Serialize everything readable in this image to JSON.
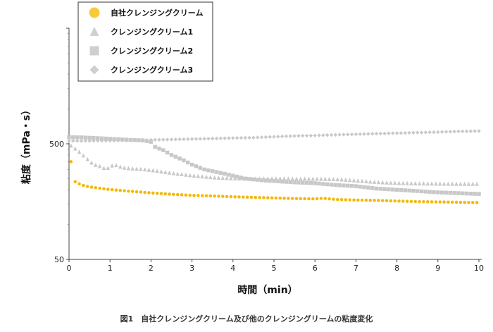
{
  "chart_data": {
    "type": "scatter",
    "caption": "図1　自社クレンジングクリーム及び他のクレンジングリームの粘度変化",
    "xlabel": "時間（min）",
    "ylabel": "粘度（mPa・s）",
    "xlim": [
      0,
      10
    ],
    "ylim": [
      50,
      5000
    ],
    "y_scale": "log",
    "x_ticks": [
      "0",
      "1",
      "2",
      "3",
      "4",
      "5",
      "6",
      "7",
      "8",
      "9",
      "10"
    ],
    "y_ticks": [
      "50",
      "500"
    ],
    "grid": false,
    "legend_position": "top-left",
    "series": [
      {
        "name": "自社クレンジングクリーム",
        "color": "#f5b800",
        "marker": "circle",
        "points": [
          [
            0.05,
            350
          ],
          [
            0.15,
            235
          ],
          [
            0.3,
            220
          ],
          [
            0.5,
            212
          ],
          [
            0.8,
            205
          ],
          [
            1.0,
            201
          ],
          [
            1.3,
            197
          ],
          [
            1.6,
            193
          ],
          [
            2.0,
            188
          ],
          [
            2.5,
            183
          ],
          [
            3.0,
            179
          ],
          [
            3.5,
            177
          ],
          [
            4.0,
            174
          ],
          [
            4.5,
            172
          ],
          [
            5.0,
            170
          ],
          [
            5.5,
            168
          ],
          [
            6.0,
            167
          ],
          [
            6.2,
            169
          ],
          [
            6.5,
            165
          ],
          [
            7.0,
            163
          ],
          [
            7.5,
            162
          ],
          [
            8.0,
            160
          ],
          [
            8.5,
            158
          ],
          [
            9.0,
            157
          ],
          [
            9.5,
            156
          ],
          [
            10.0,
            155
          ]
        ]
      },
      {
        "name": "クレンジングクリーム1",
        "color": "#c8c8c8",
        "marker": "triangle",
        "points": [
          [
            0.05,
            480
          ],
          [
            0.2,
            440
          ],
          [
            0.4,
            380
          ],
          [
            0.6,
            330
          ],
          [
            0.8,
            315
          ],
          [
            0.9,
            300
          ],
          [
            1.1,
            330
          ],
          [
            1.3,
            310
          ],
          [
            1.5,
            305
          ],
          [
            1.8,
            300
          ],
          [
            2.0,
            295
          ],
          [
            2.3,
            285
          ],
          [
            2.6,
            275
          ],
          [
            3.0,
            265
          ],
          [
            3.5,
            255
          ],
          [
            4.0,
            250
          ],
          [
            4.5,
            248
          ],
          [
            5.0,
            250
          ],
          [
            5.5,
            248
          ],
          [
            6.0,
            248
          ],
          [
            6.5,
            246
          ],
          [
            7.0,
            240
          ],
          [
            7.5,
            232
          ],
          [
            8.0,
            228
          ],
          [
            8.5,
            226
          ],
          [
            9.0,
            225
          ],
          [
            9.5,
            224
          ],
          [
            10.0,
            224
          ]
        ]
      },
      {
        "name": "クレンジングクリーム2",
        "color": "#c8c8c8",
        "marker": "square",
        "points": [
          [
            0.0,
            570
          ],
          [
            0.3,
            568
          ],
          [
            0.6,
            562
          ],
          [
            0.9,
            555
          ],
          [
            1.2,
            548
          ],
          [
            1.5,
            540
          ],
          [
            1.8,
            535
          ],
          [
            2.0,
            520
          ],
          [
            2.1,
            470
          ],
          [
            2.3,
            440
          ],
          [
            2.5,
            400
          ],
          [
            2.8,
            360
          ],
          [
            3.0,
            330
          ],
          [
            3.3,
            300
          ],
          [
            3.7,
            280
          ],
          [
            4.0,
            265
          ],
          [
            4.3,
            250
          ],
          [
            4.7,
            242
          ],
          [
            5.0,
            238
          ],
          [
            5.5,
            232
          ],
          [
            6.0,
            228
          ],
          [
            6.5,
            220
          ],
          [
            7.0,
            215
          ],
          [
            7.5,
            205
          ],
          [
            8.0,
            200
          ],
          [
            8.5,
            195
          ],
          [
            9.0,
            190
          ],
          [
            9.5,
            187
          ],
          [
            10.0,
            184
          ]
        ]
      },
      {
        "name": "クレンジングクリーム3",
        "color": "#c8c8c8",
        "marker": "diamond",
        "points": [
          [
            0.0,
            530
          ],
          [
            0.5,
            530
          ],
          [
            1.0,
            532
          ],
          [
            1.5,
            535
          ],
          [
            2.0,
            540
          ],
          [
            2.5,
            545
          ],
          [
            3.0,
            550
          ],
          [
            3.5,
            555
          ],
          [
            4.0,
            560
          ],
          [
            4.5,
            565
          ],
          [
            5.0,
            575
          ],
          [
            5.5,
            585
          ],
          [
            6.0,
            590
          ],
          [
            6.5,
            598
          ],
          [
            7.0,
            605
          ],
          [
            7.5,
            612
          ],
          [
            8.0,
            618
          ],
          [
            8.5,
            625
          ],
          [
            9.0,
            632
          ],
          [
            9.5,
            640
          ],
          [
            10.0,
            645
          ]
        ]
      }
    ]
  }
}
